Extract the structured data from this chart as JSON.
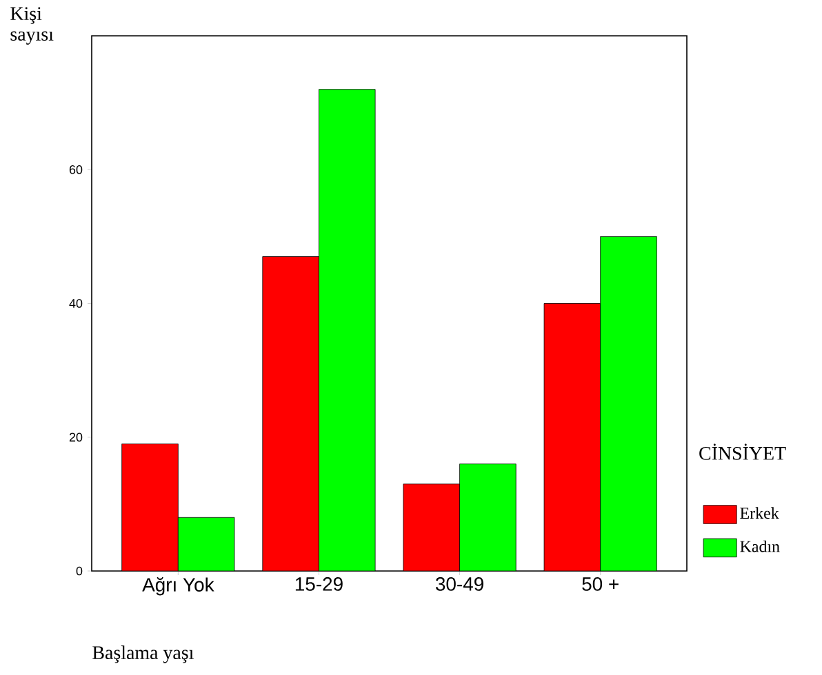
{
  "chart_data": {
    "type": "bar",
    "xlabel": "Başlama yaşı",
    "ylabel": "Kişi sayısı",
    "legend_title": "CİNSİYET",
    "categories": [
      "Ağrı Yok",
      "15-29",
      "30-49",
      "50 +"
    ],
    "series": [
      {
        "name": "Erkek",
        "color": "#ff0000",
        "values": [
          19,
          47,
          13,
          40
        ]
      },
      {
        "name": "Kadın",
        "color": "#00ff00",
        "values": [
          8,
          72,
          16,
          50
        ]
      }
    ],
    "ylim": [
      0,
      80
    ],
    "yticks": [
      0,
      20,
      40,
      60
    ],
    "legend": "right"
  }
}
